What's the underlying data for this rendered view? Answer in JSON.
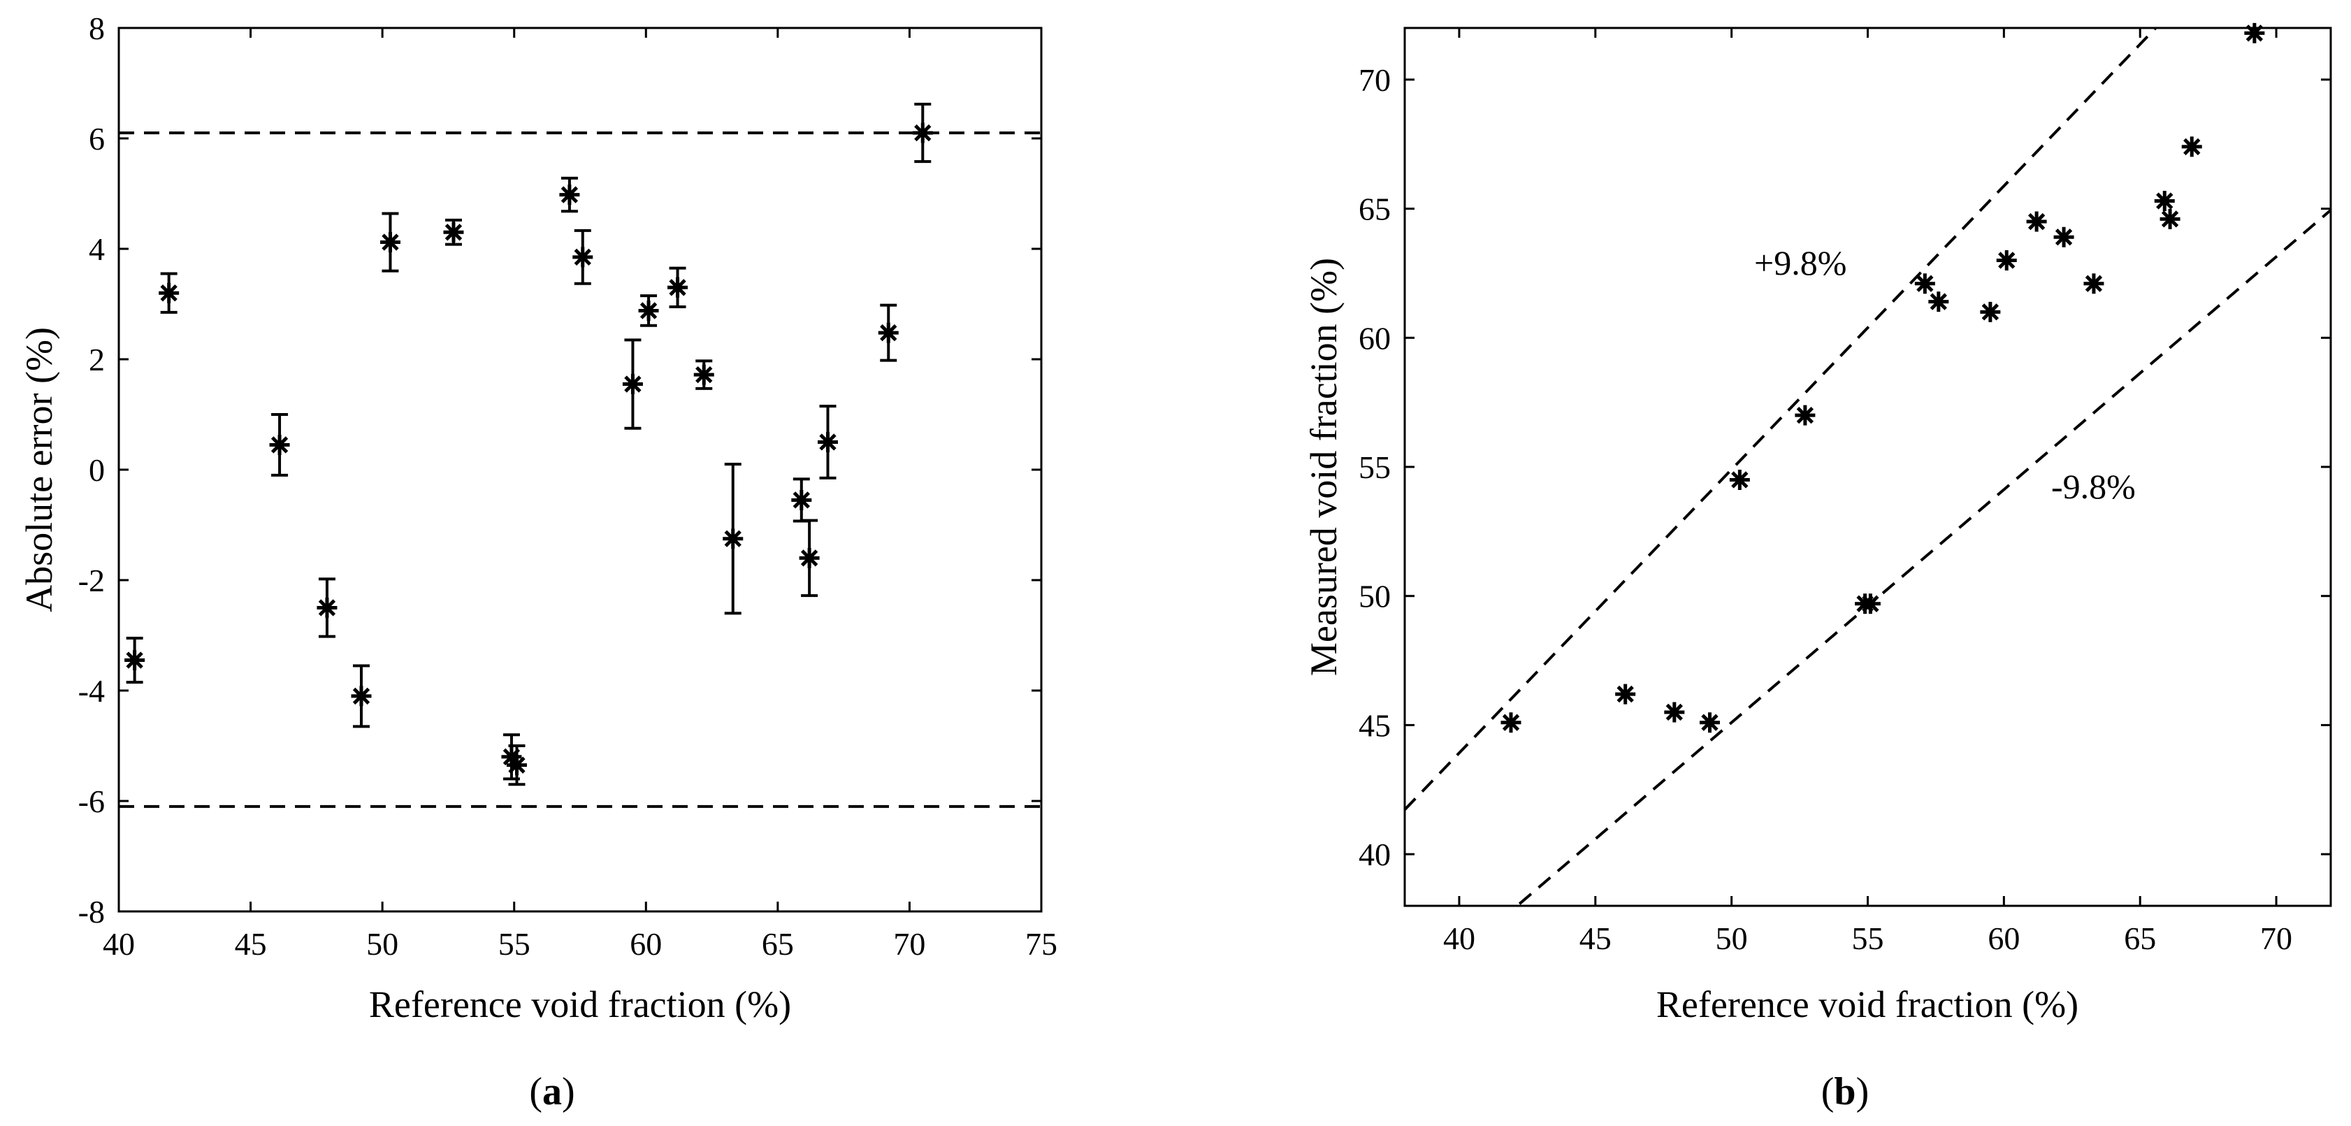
{
  "chart_data": [
    {
      "id": "a",
      "type": "scatter",
      "panel_label": {
        "open": "(",
        "letter": "a",
        "close": ")"
      },
      "title": "",
      "xlabel": "Reference void fraction (%)",
      "ylabel": "Absolute error  (%)",
      "xlim": [
        40,
        75
      ],
      "ylim": [
        -8,
        8
      ],
      "xticks": [
        40,
        45,
        50,
        55,
        60,
        65,
        70,
        75
      ],
      "yticks": [
        -8,
        -6,
        -4,
        -2,
        0,
        2,
        4,
        6,
        8
      ],
      "marker": "asterisk",
      "error_bars": true,
      "reference_lines": [
        {
          "type": "horizontal",
          "y": 6.1,
          "style": "dashed"
        },
        {
          "type": "horizontal",
          "y": -6.1,
          "style": "dashed"
        }
      ],
      "points": [
        {
          "x": 40.6,
          "y": -3.45,
          "err": 0.4
        },
        {
          "x": 41.9,
          "y": 3.2,
          "err": 0.35
        },
        {
          "x": 46.1,
          "y": 0.45,
          "err": 0.55
        },
        {
          "x": 47.9,
          "y": -2.5,
          "err": 0.52
        },
        {
          "x": 49.2,
          "y": -4.1,
          "err": 0.55
        },
        {
          "x": 50.3,
          "y": 4.12,
          "err": 0.52
        },
        {
          "x": 52.7,
          "y": 4.3,
          "err": 0.22
        },
        {
          "x": 54.9,
          "y": -5.2,
          "err": 0.4
        },
        {
          "x": 55.1,
          "y": -5.35,
          "err": 0.35
        },
        {
          "x": 57.1,
          "y": 4.98,
          "err": 0.3
        },
        {
          "x": 57.6,
          "y": 3.85,
          "err": 0.48
        },
        {
          "x": 59.5,
          "y": 1.55,
          "err": 0.8
        },
        {
          "x": 60.1,
          "y": 2.88,
          "err": 0.27
        },
        {
          "x": 61.2,
          "y": 3.3,
          "err": 0.35
        },
        {
          "x": 62.2,
          "y": 1.72,
          "err": 0.25
        },
        {
          "x": 63.3,
          "y": -1.25,
          "err": 1.35
        },
        {
          "x": 65.9,
          "y": -0.55,
          "err": 0.38
        },
        {
          "x": 66.2,
          "y": -1.6,
          "err": 0.68
        },
        {
          "x": 66.9,
          "y": 0.5,
          "err": 0.65
        },
        {
          "x": 69.2,
          "y": 2.48,
          "err": 0.5
        },
        {
          "x": 70.5,
          "y": 6.1,
          "err": 0.52
        }
      ]
    },
    {
      "id": "b",
      "type": "scatter",
      "panel_label": {
        "open": "(",
        "letter": "b",
        "close": ")"
      },
      "title": "",
      "xlabel": "Reference void fraction (%)",
      "ylabel": "Measured void fraction (%)",
      "xlim": [
        38,
        72
      ],
      "ylim": [
        38,
        72
      ],
      "xticks": [
        40,
        45,
        50,
        55,
        60,
        65,
        70
      ],
      "yticks": [
        40,
        45,
        50,
        55,
        60,
        65,
        70
      ],
      "marker": "asterisk",
      "reference_lines": [
        {
          "type": "relative",
          "factor": 1.098,
          "label": "+9.8%",
          "style": "dashed"
        },
        {
          "type": "relative",
          "factor": 0.902,
          "label": "-9.8%",
          "style": "dashed"
        }
      ],
      "annotations": [
        "+9.8%",
        "-9.8%"
      ],
      "points": [
        {
          "x": 41.9,
          "y": 45.1
        },
        {
          "x": 46.1,
          "y": 46.2
        },
        {
          "x": 47.9,
          "y": 45.5
        },
        {
          "x": 49.2,
          "y": 45.1
        },
        {
          "x": 50.3,
          "y": 54.5
        },
        {
          "x": 52.7,
          "y": 57.0
        },
        {
          "x": 54.9,
          "y": 49.7
        },
        {
          "x": 55.1,
          "y": 49.7
        },
        {
          "x": 57.1,
          "y": 62.1
        },
        {
          "x": 57.6,
          "y": 61.4
        },
        {
          "x": 59.5,
          "y": 61.0
        },
        {
          "x": 60.1,
          "y": 63.0
        },
        {
          "x": 61.2,
          "y": 64.5
        },
        {
          "x": 62.2,
          "y": 63.9
        },
        {
          "x": 63.3,
          "y": 62.1
        },
        {
          "x": 65.9,
          "y": 65.3
        },
        {
          "x": 66.1,
          "y": 64.6
        },
        {
          "x": 66.9,
          "y": 67.4
        },
        {
          "x": 69.2,
          "y": 71.8
        }
      ]
    }
  ]
}
